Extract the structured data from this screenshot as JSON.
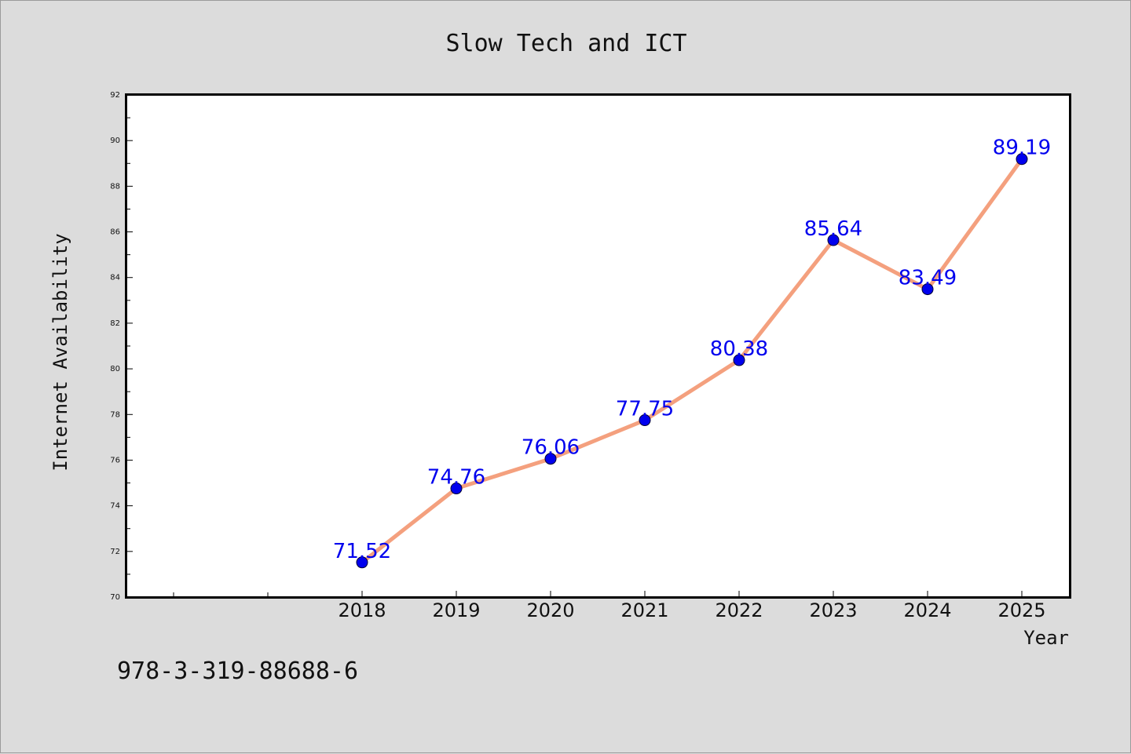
{
  "chart_data": {
    "type": "line",
    "title": "Slow Tech and ICT",
    "xlabel": "Year",
    "ylabel": "Internet Availability",
    "categories": [
      "2018",
      "2019",
      "2020",
      "2021",
      "2022",
      "2023",
      "2024",
      "2025"
    ],
    "values": [
      71.52,
      74.76,
      76.06,
      77.75,
      80.38,
      85.64,
      83.49,
      89.19
    ],
    "data_labels": [
      "71.52",
      "74.76",
      "76.06",
      "77.75",
      "80.38",
      "85.64",
      "83.49",
      "89.19"
    ],
    "ylim": [
      70,
      92
    ],
    "yticks": [
      70,
      72,
      74,
      76,
      78,
      80,
      82,
      84,
      86,
      88,
      90,
      92
    ],
    "ytick_labels": [
      "70",
      "72",
      "74",
      "76",
      "78",
      "80",
      "82",
      "84",
      "86",
      "88",
      "90",
      "92"
    ],
    "x_slots_before_first_category": 2,
    "grid": false,
    "legend": "none",
    "line_color": "#f4a07e",
    "marker_color": "#0000ee",
    "label_color": "#0000ee",
    "background_color": "#dcdcdc",
    "plot_background": "#ffffff"
  },
  "footer_text": "978-3-319-88688-6"
}
